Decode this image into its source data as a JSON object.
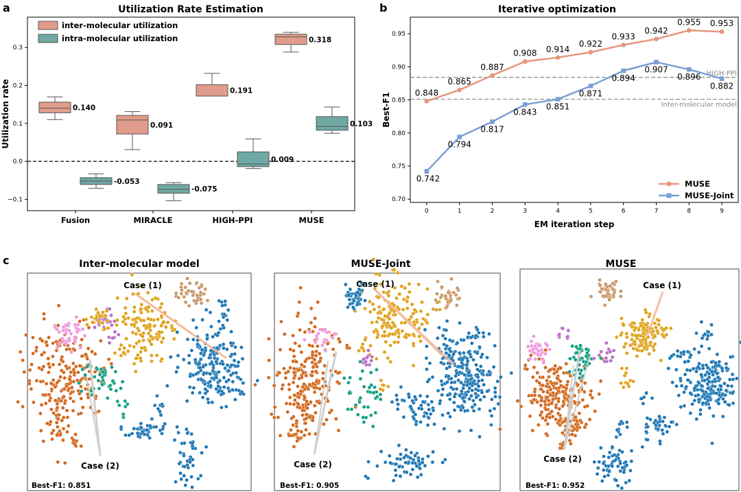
{
  "panel_labels": {
    "a": "a",
    "b": "b",
    "c": "c"
  },
  "colors": {
    "inter": "#e19c8c",
    "intra": "#6fa9a4",
    "muse_line": "#e6957c",
    "joint_line": "#7a9fd3",
    "orange": "#d2691e",
    "gold": "#e0a21a",
    "blue": "#1f77b4",
    "green": "#16a085",
    "pink": "#ee99dd",
    "purple": "#b86fc5",
    "tan": "#c89868"
  },
  "chart_data": [
    {
      "type": "box",
      "title": "Utilization Rate Estimation",
      "xlabel": "",
      "ylabel": "Utilization rate",
      "categories": [
        "Fusion",
        "MIRACLE",
        "HIGH-PPI",
        "MUSE"
      ],
      "ylim": [
        -0.13,
        0.38
      ],
      "yticks": [
        -0.1,
        0.0,
        0.1,
        0.2,
        0.3
      ],
      "ytick_labels": [
        "−0.1",
        "0.0",
        "0.1",
        "0.2",
        "0.3"
      ],
      "reference_line": 0.0,
      "legend": "top-left",
      "series": [
        {
          "name": "inter-molecular utilization",
          "boxes": [
            {
              "whislo": 0.11,
              "q1": 0.128,
              "med": 0.14,
              "q3": 0.156,
              "whishi": 0.17,
              "label": "0.140"
            },
            {
              "whislo": 0.031,
              "q1": 0.072,
              "med": 0.109,
              "q3": 0.121,
              "whishi": 0.131,
              "label": "0.091"
            },
            {
              "whislo": 0.172,
              "q1": 0.172,
              "med": 0.172,
              "q3": 0.202,
              "whishi": 0.232,
              "label": "0.191"
            },
            {
              "whislo": 0.288,
              "q1": 0.308,
              "med": 0.328,
              "q3": 0.335,
              "whishi": 0.34,
              "label": "0.318"
            }
          ]
        },
        {
          "name": "intra-molecular utilization",
          "boxes": [
            {
              "whislo": -0.071,
              "q1": -0.061,
              "med": -0.052,
              "q3": -0.043,
              "whishi": -0.033,
              "label": "-0.053"
            },
            {
              "whislo": -0.104,
              "q1": -0.084,
              "med": -0.074,
              "q3": -0.061,
              "whishi": -0.056,
              "label": "-0.075"
            },
            {
              "whislo": -0.019,
              "q1": -0.014,
              "med": -0.007,
              "q3": 0.025,
              "whishi": 0.059,
              "label": "0.009"
            },
            {
              "whislo": 0.074,
              "q1": 0.082,
              "med": 0.092,
              "q3": 0.118,
              "whishi": 0.143,
              "label": "0.103"
            }
          ]
        }
      ]
    },
    {
      "type": "line",
      "title": "Iterative optimization",
      "xlabel": "EM iteration step",
      "ylabel": "Best-F1",
      "x": [
        0,
        1,
        2,
        3,
        4,
        5,
        6,
        7,
        8,
        9
      ],
      "xlim": [
        -0.5,
        9.5
      ],
      "ylim": [
        0.695,
        0.975
      ],
      "yticks": [
        0.7,
        0.75,
        0.8,
        0.85,
        0.9,
        0.95
      ],
      "ytick_labels": [
        "0.70",
        "0.75",
        "0.80",
        "0.85",
        "0.90",
        "0.95"
      ],
      "legend": "bottom-right",
      "series": [
        {
          "name": "MUSE",
          "values": [
            0.848,
            0.865,
            0.887,
            0.908,
            0.914,
            0.922,
            0.933,
            0.942,
            0.955,
            0.953
          ]
        },
        {
          "name": "MUSE-Joint",
          "values": [
            0.742,
            0.794,
            0.817,
            0.843,
            0.851,
            0.871,
            0.894,
            0.907,
            0.896,
            0.882
          ]
        }
      ],
      "hlines": [
        {
          "value": 0.884,
          "label": "HIGH-PPI"
        },
        {
          "value": 0.851,
          "label": "Inter-molecular model"
        }
      ]
    },
    {
      "type": "scatter",
      "title": "Inter-molecular model",
      "annotations": [
        "Case (1)",
        "Case (2)"
      ],
      "metric": "Best-F1: 0.851"
    },
    {
      "type": "scatter",
      "title": "MUSE-Joint",
      "annotations": [
        "Case (1)",
        "Case (2)"
      ],
      "metric": "Best-F1: 0.905"
    },
    {
      "type": "scatter",
      "title": "MUSE",
      "annotations": [
        "Case (1)",
        "Case (2)"
      ],
      "metric": "Best-F1: 0.952"
    }
  ]
}
